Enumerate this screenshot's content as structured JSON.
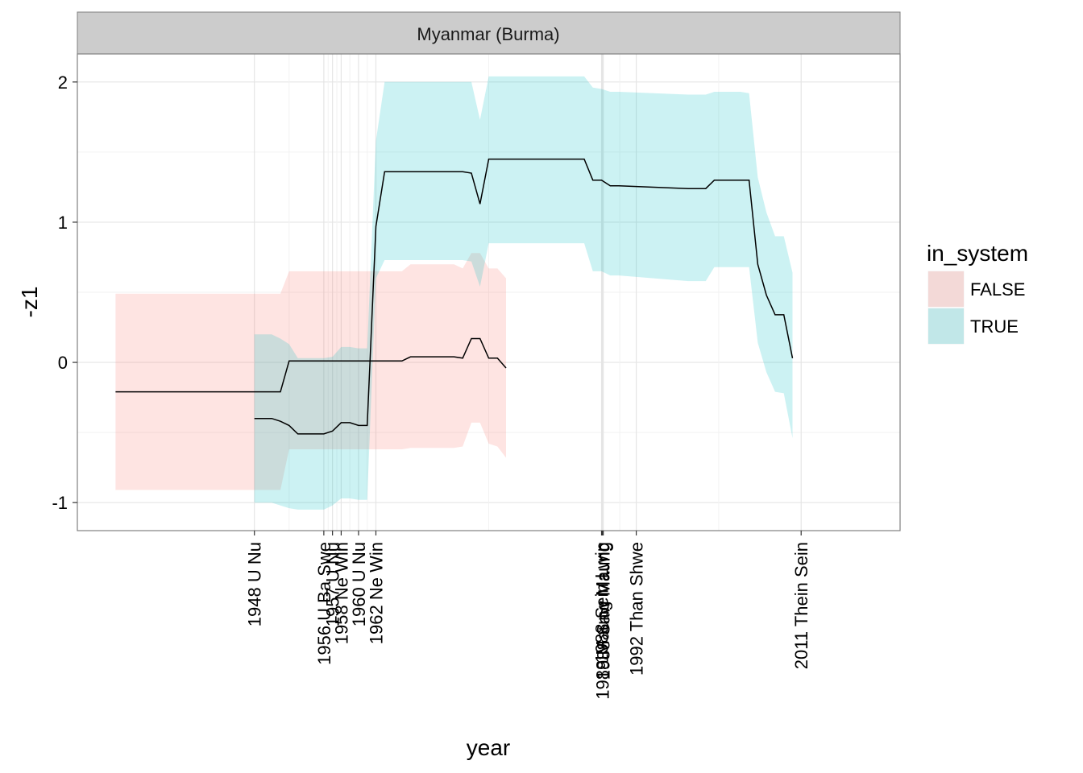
{
  "chart_data": {
    "type": "line",
    "facet": "Myanmar (Burma)",
    "xlabel": "year",
    "ylabel": "-z1",
    "xlim": [
      1927.6,
      2022.4
    ],
    "ylim": [
      -1.2,
      2.2
    ],
    "yticks": [
      -1,
      0,
      1,
      2
    ],
    "grid": true,
    "legend": {
      "title": "in_system",
      "position": "right",
      "entries": [
        {
          "label": "FALSE",
          "color": "#F8766D"
        },
        {
          "label": "TRUE",
          "color": "#00BFC4"
        }
      ]
    },
    "band_alpha": 0.2,
    "x_ticks": [
      {
        "value": 1948,
        "label": "1948 U Nu"
      },
      {
        "value": 1956,
        "label": "1956 U Ba Swe"
      },
      {
        "value": 1957,
        "label": "1957 U Nu"
      },
      {
        "value": 1958,
        "label": "1958 Ne Win"
      },
      {
        "value": 1960,
        "label": "1960 U Nu"
      },
      {
        "value": 1962,
        "label": "1962 Ne Win"
      },
      {
        "value": 1988,
        "label": "1988 Sein Lwin"
      },
      {
        "value": 1988.1,
        "label": "1988 Maung Maung"
      },
      {
        "value": 1988.2,
        "label": "1988 Saw Maung"
      },
      {
        "value": 1992,
        "label": "1992 Than Shwe"
      },
      {
        "value": 2011,
        "label": "2011 Thein Sein"
      }
    ],
    "series": [
      {
        "name": "FALSE",
        "color": "#F8766D",
        "points": [
          [
            1932,
            -0.21,
            -0.91,
            0.49
          ],
          [
            1951,
            -0.21,
            -0.91,
            0.49
          ],
          [
            1952,
            0.01,
            -0.62,
            0.65
          ],
          [
            1965,
            0.01,
            -0.62,
            0.65
          ],
          [
            1966,
            0.04,
            -0.61,
            0.7
          ],
          [
            1971,
            0.04,
            -0.61,
            0.7
          ],
          [
            1972,
            0.03,
            -0.6,
            0.67
          ],
          [
            1973,
            0.17,
            -0.43,
            0.78
          ],
          [
            1974,
            0.17,
            -0.43,
            0.78
          ],
          [
            1975,
            0.03,
            -0.58,
            0.67
          ],
          [
            1976,
            0.03,
            -0.6,
            0.67
          ],
          [
            1977,
            -0.04,
            -0.68,
            0.6
          ]
        ]
      },
      {
        "name": "TRUE",
        "color": "#00BFC4",
        "points": [
          [
            1948,
            -0.4,
            -1.0,
            0.2
          ],
          [
            1950,
            -0.4,
            -1.0,
            0.2
          ],
          [
            1951,
            -0.42,
            -1.02,
            0.17
          ],
          [
            1952,
            -0.45,
            -1.04,
            0.13
          ],
          [
            1953,
            -0.51,
            -1.05,
            0.03
          ],
          [
            1956,
            -0.51,
            -1.05,
            0.03
          ],
          [
            1957,
            -0.49,
            -1.02,
            0.04
          ],
          [
            1958,
            -0.43,
            -0.97,
            0.11
          ],
          [
            1959,
            -0.43,
            -0.97,
            0.11
          ],
          [
            1960,
            -0.45,
            -0.98,
            0.1
          ],
          [
            1961,
            -0.45,
            -0.98,
            0.1
          ],
          [
            1962,
            0.97,
            0.6,
            1.58
          ],
          [
            1963,
            1.36,
            0.73,
            2.0
          ],
          [
            1972,
            1.36,
            0.73,
            2.0
          ],
          [
            1973,
            1.35,
            0.72,
            2.0
          ],
          [
            1974,
            1.13,
            0.54,
            1.73
          ],
          [
            1975,
            1.45,
            0.85,
            2.04
          ],
          [
            1986,
            1.45,
            0.85,
            2.04
          ],
          [
            1987,
            1.3,
            0.65,
            1.96
          ],
          [
            1988,
            1.3,
            0.65,
            1.95
          ],
          [
            1989,
            1.26,
            0.62,
            1.93
          ],
          [
            1990,
            1.26,
            0.62,
            1.93
          ],
          [
            1998,
            1.24,
            0.58,
            1.91
          ],
          [
            2000,
            1.24,
            0.58,
            1.91
          ],
          [
            2001,
            1.3,
            0.68,
            1.93
          ],
          [
            2004,
            1.3,
            0.68,
            1.93
          ],
          [
            2005,
            1.3,
            0.68,
            1.92
          ],
          [
            2006,
            0.7,
            0.14,
            1.32
          ],
          [
            2007,
            0.48,
            -0.07,
            1.07
          ],
          [
            2008,
            0.34,
            -0.21,
            0.9
          ],
          [
            2009,
            0.34,
            -0.22,
            0.9
          ],
          [
            2010,
            0.03,
            -0.54,
            0.64
          ]
        ]
      }
    ]
  }
}
